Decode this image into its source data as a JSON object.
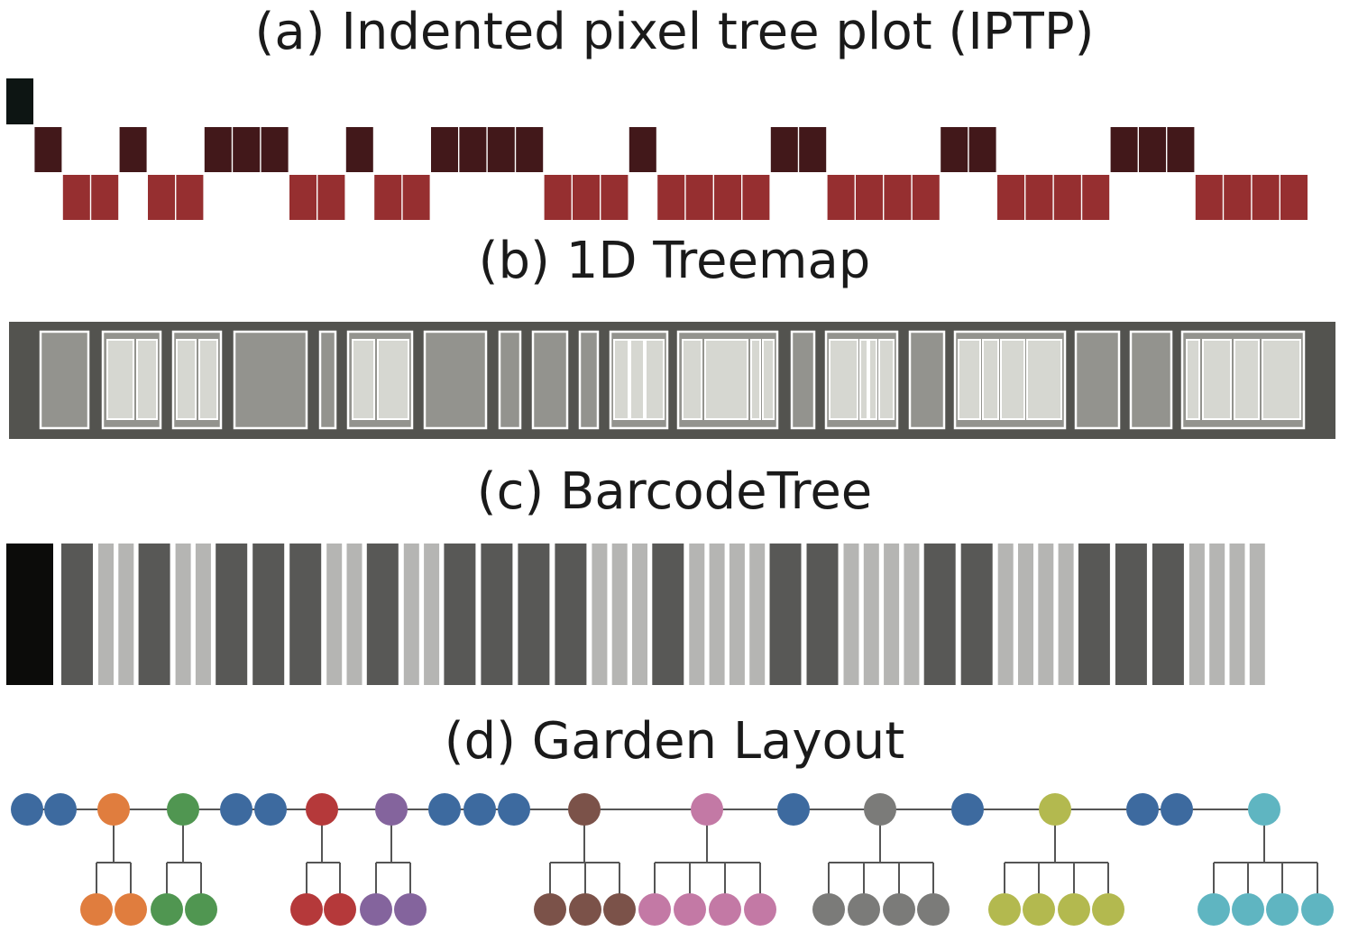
{
  "titles": {
    "a": "(a) Indented pixel tree plot (IPTP)",
    "b": "(b) 1D Treemap",
    "c": "(c) BarcodeTree",
    "d": "(d) Garden Layout"
  },
  "colors": {
    "iptp_root": "#0d1513",
    "iptp_level1": "#42181a",
    "iptp_level2": "#962f30",
    "treemap_frame": "#53534f",
    "treemap_mid": "#93938e",
    "treemap_light": "#d6d7d1",
    "treemap_border": "#ffffff",
    "barcode_root": "#0c0c0a",
    "barcode_level1": "#585856",
    "barcode_level2": "#b5b5b3",
    "garden_edge": "#555555",
    "garden_blue": "#3d6a9f",
    "palette": [
      "#e07d3e",
      "#509651",
      "#b5393a",
      "#84649d",
      "#7b5249",
      "#c379a5",
      "#7b7b79",
      "#b3b94f",
      "#5fb5c1"
    ]
  },
  "tree": {
    "root": 1,
    "children": [
      {
        "grandchildren": 2
      },
      {
        "grandchildren": 2
      },
      {
        "grandchildren": 0
      },
      {
        "grandchildren": 0
      },
      {
        "grandchildren": 2
      },
      {
        "grandchildren": 2
      },
      {
        "grandchildren": 0
      },
      {
        "grandchildren": 0
      },
      {
        "grandchildren": 0
      },
      {
        "grandchildren": 3
      },
      {
        "grandchildren": 4
      },
      {
        "grandchildren": 0
      },
      {
        "grandchildren": 4
      },
      {
        "grandchildren": 0
      },
      {
        "grandchildren": 4
      },
      {
        "grandchildren": 0
      },
      {
        "grandchildren": 0
      },
      {
        "grandchildren": 4
      }
    ]
  }
}
